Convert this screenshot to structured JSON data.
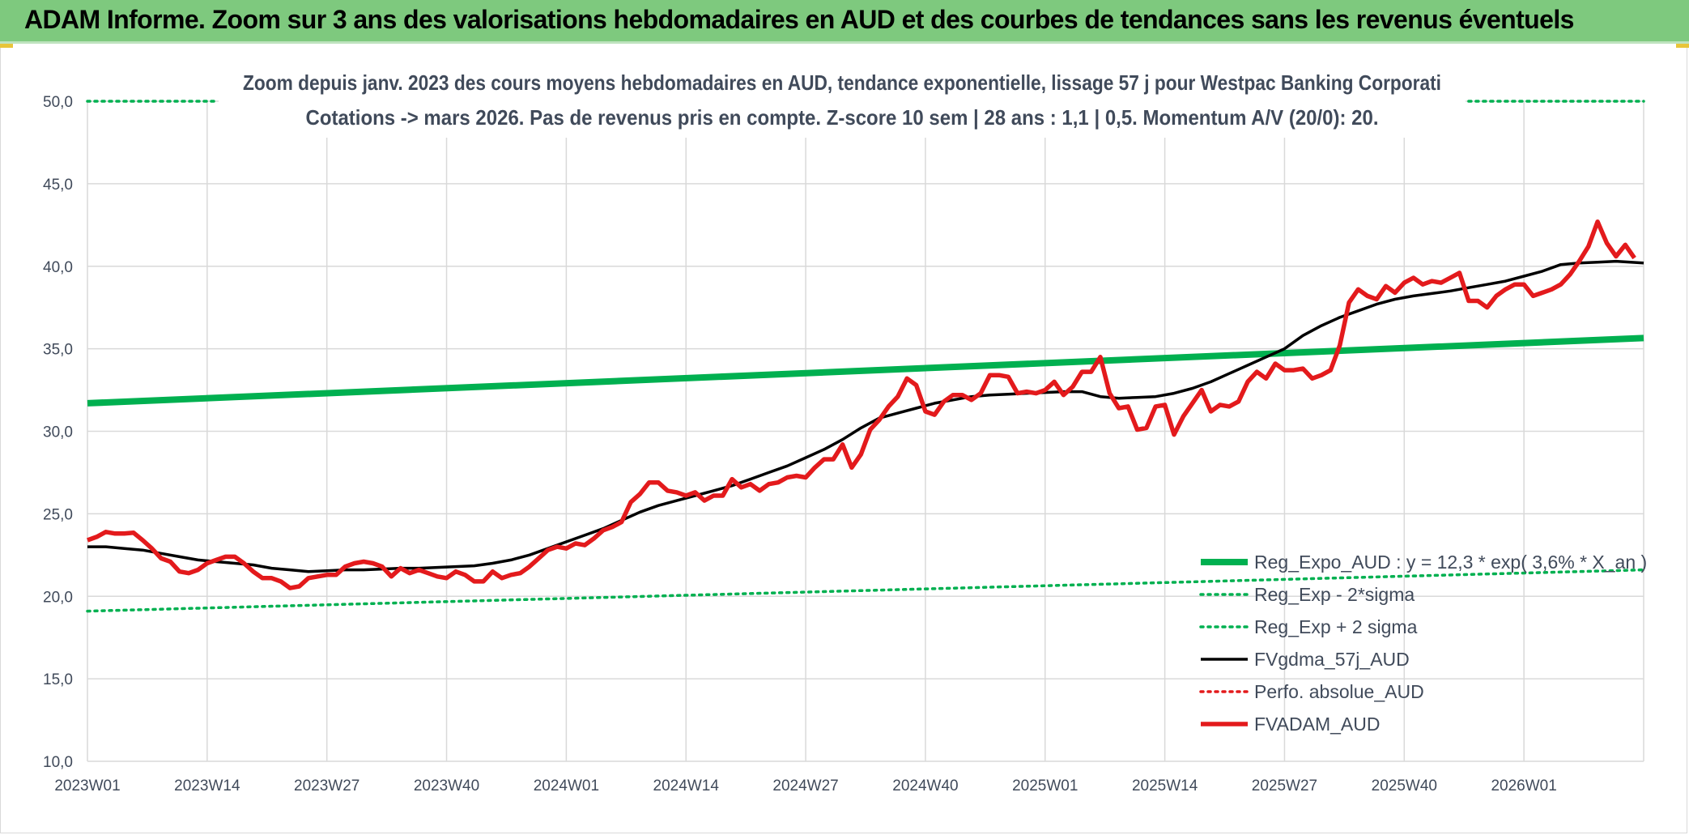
{
  "banner": {
    "title": "ADAM Informe. Zoom sur 3 ans des valorisations hebdomadaires en AUD et des courbes de tendances sans les revenus éventuels"
  },
  "colors": {
    "banner_bg": "#7ec97e",
    "reg_expo": "#00b050",
    "sigma": "#00b050",
    "fvgdma": "#000000",
    "perfo": "#e31a1c",
    "fvadam": "#e31a1c",
    "grid": "#d9d9d9"
  },
  "chart_data": {
    "type": "line",
    "title": "Zoom depuis janv. 2023 des cours moyens hebdomadaires en AUD, tendance exponentielle, lissage 57 j pour Westpac Banking Corporati",
    "subtitle": "Cotations -> mars 2026. Pas de revenus pris en compte. Z-score 10 sem | 28 ans : 1,1 | 0,5. Momentum A/V (20/0): 20.",
    "xlabel": "",
    "ylabel": "",
    "ylim": [
      10,
      50
    ],
    "y_ticks": [
      "10,0",
      "15,0",
      "20,0",
      "25,0",
      "30,0",
      "35,0",
      "40,0",
      "45,0",
      "50,0"
    ],
    "x_ticks": [
      "2023W01",
      "2023W14",
      "2023W27",
      "2023W40",
      "2024W01",
      "2024W14",
      "2024W27",
      "2024W40",
      "2025W01",
      "2025W14",
      "2025W27",
      "2025W40",
      "2026W01"
    ],
    "x_range_weeks": [
      0,
      169
    ],
    "grid": true,
    "legend_position": "bottom-right",
    "series": [
      {
        "name": "Reg_Expo_AUD : y = 12,3 * exp( 3,6% * X_an )",
        "style": "solid-thick",
        "color": "#00b050",
        "points": [
          [
            0,
            31.7
          ],
          [
            169,
            35.65
          ]
        ]
      },
      {
        "name": "Reg_Exp - 2*sigma",
        "style": "dotted",
        "color": "#00b050",
        "points": [
          [
            0,
            19.1
          ],
          [
            169,
            21.6
          ]
        ]
      },
      {
        "name": "Reg_Exp + 2 sigma",
        "style": "dotted",
        "color": "#00b050",
        "points": [
          [
            0,
            50.0
          ],
          [
            14,
            50.0
          ],
          [
            150,
            50.0
          ],
          [
            169,
            50.0
          ]
        ],
        "visible_segments": [
          [
            0,
            14
          ],
          [
            150,
            169
          ]
        ]
      },
      {
        "name": "FVgdma_57j_AUD",
        "style": "solid",
        "color": "#000000",
        "points": [
          [
            0,
            23.0
          ],
          [
            2,
            23.0
          ],
          [
            4,
            22.9
          ],
          [
            6,
            22.8
          ],
          [
            8,
            22.6
          ],
          [
            10,
            22.4
          ],
          [
            12,
            22.2
          ],
          [
            14,
            22.1
          ],
          [
            16,
            22.0
          ],
          [
            18,
            21.9
          ],
          [
            20,
            21.7
          ],
          [
            22,
            21.6
          ],
          [
            24,
            21.5
          ],
          [
            26,
            21.55
          ],
          [
            28,
            21.6
          ],
          [
            30,
            21.6
          ],
          [
            32,
            21.65
          ],
          [
            34,
            21.7
          ],
          [
            36,
            21.7
          ],
          [
            38,
            21.75
          ],
          [
            40,
            21.8
          ],
          [
            42,
            21.85
          ],
          [
            44,
            22.0
          ],
          [
            46,
            22.2
          ],
          [
            48,
            22.5
          ],
          [
            50,
            22.9
          ],
          [
            52,
            23.3
          ],
          [
            54,
            23.7
          ],
          [
            56,
            24.1
          ],
          [
            58,
            24.6
          ],
          [
            60,
            25.1
          ],
          [
            62,
            25.5
          ],
          [
            64,
            25.8
          ],
          [
            66,
            26.1
          ],
          [
            68,
            26.4
          ],
          [
            70,
            26.7
          ],
          [
            72,
            27.1
          ],
          [
            74,
            27.5
          ],
          [
            76,
            27.9
          ],
          [
            78,
            28.4
          ],
          [
            80,
            28.9
          ],
          [
            82,
            29.5
          ],
          [
            84,
            30.2
          ],
          [
            86,
            30.8
          ],
          [
            88,
            31.1
          ],
          [
            90,
            31.4
          ],
          [
            92,
            31.7
          ],
          [
            94,
            31.9
          ],
          [
            96,
            32.1
          ],
          [
            98,
            32.2
          ],
          [
            100,
            32.25
          ],
          [
            102,
            32.3
          ],
          [
            104,
            32.35
          ],
          [
            106,
            32.4
          ],
          [
            108,
            32.4
          ],
          [
            110,
            32.1
          ],
          [
            112,
            32.0
          ],
          [
            114,
            32.05
          ],
          [
            116,
            32.1
          ],
          [
            118,
            32.3
          ],
          [
            120,
            32.6
          ],
          [
            122,
            33.0
          ],
          [
            124,
            33.5
          ],
          [
            126,
            34.0
          ],
          [
            128,
            34.5
          ],
          [
            130,
            35.0
          ],
          [
            132,
            35.8
          ],
          [
            134,
            36.4
          ],
          [
            136,
            36.9
          ],
          [
            138,
            37.3
          ],
          [
            140,
            37.7
          ],
          [
            142,
            38.0
          ],
          [
            144,
            38.2
          ],
          [
            146,
            38.35
          ],
          [
            148,
            38.5
          ],
          [
            150,
            38.7
          ],
          [
            152,
            38.9
          ],
          [
            154,
            39.1
          ],
          [
            156,
            39.4
          ],
          [
            158,
            39.7
          ],
          [
            160,
            40.1
          ],
          [
            162,
            40.2
          ],
          [
            164,
            40.25
          ],
          [
            166,
            40.3
          ],
          [
            169,
            40.2
          ]
        ]
      },
      {
        "name": "Perfo. absolue_AUD",
        "style": "dotted",
        "color": "#e31a1c",
        "points": []
      },
      {
        "name": "FVADAM_AUD",
        "style": "solid-thick",
        "color": "#e31a1c",
        "points": [
          [
            0,
            23.4
          ],
          [
            1,
            23.6
          ],
          [
            2,
            23.9
          ],
          [
            3,
            23.8
          ],
          [
            4,
            23.8
          ],
          [
            5,
            23.85
          ],
          [
            6,
            23.4
          ],
          [
            7,
            22.9
          ],
          [
            8,
            22.3
          ],
          [
            9,
            22.1
          ],
          [
            10,
            21.5
          ],
          [
            11,
            21.4
          ],
          [
            12,
            21.6
          ],
          [
            13,
            22.0
          ],
          [
            14,
            22.2
          ],
          [
            15,
            22.4
          ],
          [
            16,
            22.4
          ],
          [
            17,
            22.0
          ],
          [
            18,
            21.5
          ],
          [
            19,
            21.1
          ],
          [
            20,
            21.1
          ],
          [
            21,
            20.9
          ],
          [
            22,
            20.5
          ],
          [
            23,
            20.6
          ],
          [
            24,
            21.1
          ],
          [
            25,
            21.2
          ],
          [
            26,
            21.3
          ],
          [
            27,
            21.3
          ],
          [
            28,
            21.8
          ],
          [
            29,
            22.0
          ],
          [
            30,
            22.1
          ],
          [
            31,
            22.0
          ],
          [
            32,
            21.8
          ],
          [
            33,
            21.2
          ],
          [
            34,
            21.7
          ],
          [
            35,
            21.4
          ],
          [
            36,
            21.6
          ],
          [
            37,
            21.4
          ],
          [
            38,
            21.2
          ],
          [
            39,
            21.1
          ],
          [
            40,
            21.5
          ],
          [
            41,
            21.3
          ],
          [
            42,
            20.9
          ],
          [
            43,
            20.9
          ],
          [
            44,
            21.5
          ],
          [
            45,
            21.1
          ],
          [
            46,
            21.3
          ],
          [
            47,
            21.4
          ],
          [
            48,
            21.8
          ],
          [
            49,
            22.3
          ],
          [
            50,
            22.8
          ],
          [
            51,
            23.0
          ],
          [
            52,
            22.9
          ],
          [
            53,
            23.2
          ],
          [
            54,
            23.1
          ],
          [
            55,
            23.5
          ],
          [
            56,
            24.0
          ],
          [
            57,
            24.2
          ],
          [
            58,
            24.5
          ],
          [
            59,
            25.7
          ],
          [
            60,
            26.2
          ],
          [
            61,
            26.9
          ],
          [
            62,
            26.9
          ],
          [
            63,
            26.4
          ],
          [
            64,
            26.3
          ],
          [
            65,
            26.1
          ],
          [
            66,
            26.3
          ],
          [
            67,
            25.8
          ],
          [
            68,
            26.1
          ],
          [
            69,
            26.1
          ],
          [
            70,
            27.1
          ],
          [
            71,
            26.6
          ],
          [
            72,
            26.8
          ],
          [
            73,
            26.4
          ],
          [
            74,
            26.8
          ],
          [
            75,
            26.9
          ],
          [
            76,
            27.2
          ],
          [
            77,
            27.3
          ],
          [
            78,
            27.2
          ],
          [
            79,
            27.8
          ],
          [
            80,
            28.3
          ],
          [
            81,
            28.3
          ],
          [
            82,
            29.2
          ],
          [
            83,
            27.8
          ],
          [
            84,
            28.6
          ],
          [
            85,
            30.1
          ],
          [
            86,
            30.7
          ],
          [
            87,
            31.5
          ],
          [
            88,
            32.1
          ],
          [
            89,
            33.2
          ],
          [
            90,
            32.8
          ],
          [
            91,
            31.2
          ],
          [
            92,
            31.0
          ],
          [
            93,
            31.8
          ],
          [
            94,
            32.2
          ],
          [
            95,
            32.2
          ],
          [
            96,
            31.9
          ],
          [
            97,
            32.3
          ],
          [
            98,
            33.4
          ],
          [
            99,
            33.4
          ],
          [
            100,
            33.3
          ],
          [
            101,
            32.3
          ],
          [
            102,
            32.4
          ],
          [
            103,
            32.3
          ],
          [
            104,
            32.5
          ],
          [
            105,
            33.0
          ],
          [
            106,
            32.2
          ],
          [
            107,
            32.7
          ],
          [
            108,
            33.6
          ],
          [
            109,
            33.6
          ],
          [
            110,
            34.5
          ],
          [
            111,
            32.3
          ],
          [
            112,
            31.4
          ],
          [
            113,
            31.5
          ],
          [
            114,
            30.1
          ],
          [
            115,
            30.2
          ],
          [
            116,
            31.5
          ],
          [
            117,
            31.6
          ],
          [
            118,
            29.8
          ],
          [
            119,
            30.9
          ],
          [
            120,
            31.7
          ],
          [
            121,
            32.5
          ],
          [
            122,
            31.2
          ],
          [
            123,
            31.6
          ],
          [
            124,
            31.5
          ],
          [
            125,
            31.8
          ],
          [
            126,
            33.0
          ],
          [
            127,
            33.6
          ],
          [
            128,
            33.2
          ],
          [
            129,
            34.1
          ],
          [
            130,
            33.7
          ],
          [
            131,
            33.7
          ],
          [
            132,
            33.8
          ],
          [
            133,
            33.2
          ],
          [
            134,
            33.4
          ],
          [
            135,
            33.7
          ],
          [
            136,
            35.2
          ],
          [
            137,
            37.8
          ],
          [
            138,
            38.6
          ],
          [
            139,
            38.2
          ],
          [
            140,
            38.0
          ],
          [
            141,
            38.8
          ],
          [
            142,
            38.4
          ],
          [
            143,
            39.0
          ],
          [
            144,
            39.3
          ],
          [
            145,
            38.9
          ],
          [
            146,
            39.1
          ],
          [
            147,
            39.0
          ],
          [
            148,
            39.3
          ],
          [
            149,
            39.6
          ],
          [
            150,
            37.9
          ],
          [
            151,
            37.9
          ],
          [
            152,
            37.5
          ],
          [
            153,
            38.2
          ],
          [
            154,
            38.6
          ],
          [
            155,
            38.9
          ],
          [
            156,
            38.9
          ],
          [
            157,
            38.2
          ],
          [
            158,
            38.4
          ],
          [
            159,
            38.6
          ],
          [
            160,
            38.9
          ],
          [
            161,
            39.5
          ],
          [
            162,
            40.3
          ],
          [
            163,
            41.2
          ],
          [
            164,
            42.7
          ],
          [
            165,
            41.4
          ],
          [
            166,
            40.6
          ],
          [
            167,
            41.3
          ],
          [
            168,
            40.5
          ]
        ]
      }
    ]
  }
}
